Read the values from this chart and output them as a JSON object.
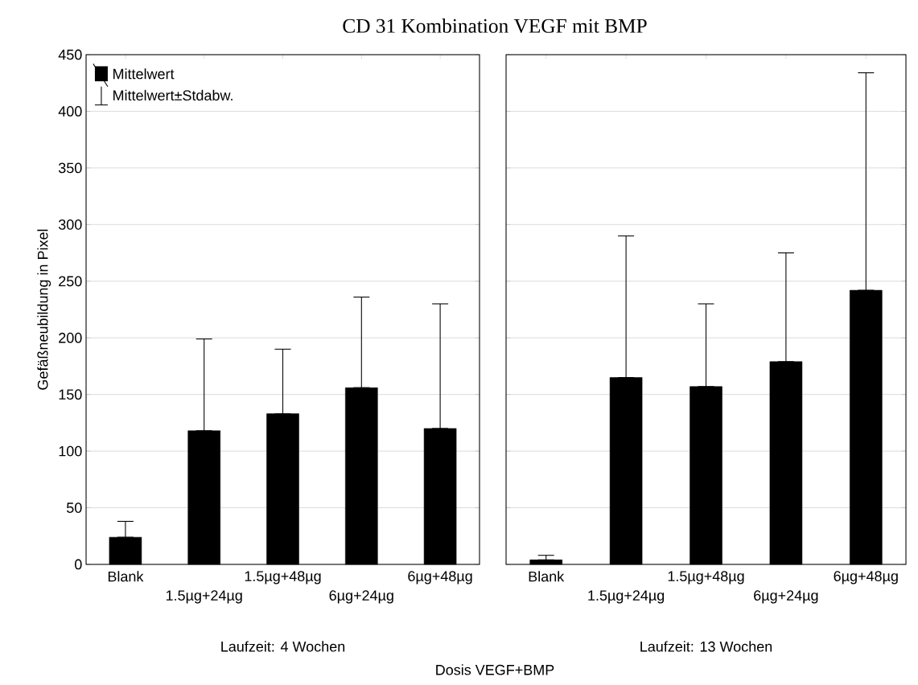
{
  "chart_data": [
    {
      "type": "bar",
      "title": "CD 31 Kombination VEGF mit BMP",
      "xlabel": "Laufzeit: 4 Wochen",
      "ylabel": "Gefäßneubildung in Pixel",
      "categories": [
        "Blank",
        "1.5µg+24µg",
        "1.5µg+48µg",
        "6µg+24µg",
        "6µg+48µg"
      ],
      "series": [
        {
          "name": "Mittelwert",
          "color": "#000000",
          "values": [
            24,
            118,
            133,
            156,
            120
          ],
          "errors": [
            [
              24,
              38
            ],
            [
              118,
              199
            ],
            [
              133,
              190
            ],
            [
              156,
              236
            ],
            [
              120,
              230
            ]
          ]
        }
      ],
      "ylim": [
        0,
        450
      ],
      "yticks": [
        0,
        50,
        100,
        150,
        200,
        250,
        300,
        350,
        400,
        450
      ],
      "grid": "y",
      "legend": "top left",
      "annotations": [
        "Mittelwert±Stdabw.",
        "Dosis VEGF+BMP"
      ]
    },
    {
      "type": "bar",
      "xlabel": "Laufzeit: 13 Wochen",
      "categories": [
        "Blank",
        "1.5µg+24µg",
        "1.5µg+48µg",
        "6µg+24µg",
        "6µg+48µg"
      ],
      "series": [
        {
          "color": "#000000",
          "values": [
            4,
            165,
            157,
            179,
            242
          ],
          "errors": [
            [
              4,
              8
            ],
            [
              165,
              290
            ],
            [
              157,
              230
            ],
            [
              179,
              275
            ],
            [
              242,
              434
            ]
          ]
        }
      ],
      "ylim": [
        0,
        450
      ],
      "yticks": [
        0,
        50,
        100,
        150,
        200,
        250,
        300,
        350,
        400,
        450
      ],
      "grid": "y",
      "tick_labels": "x"
    }
  ]
}
